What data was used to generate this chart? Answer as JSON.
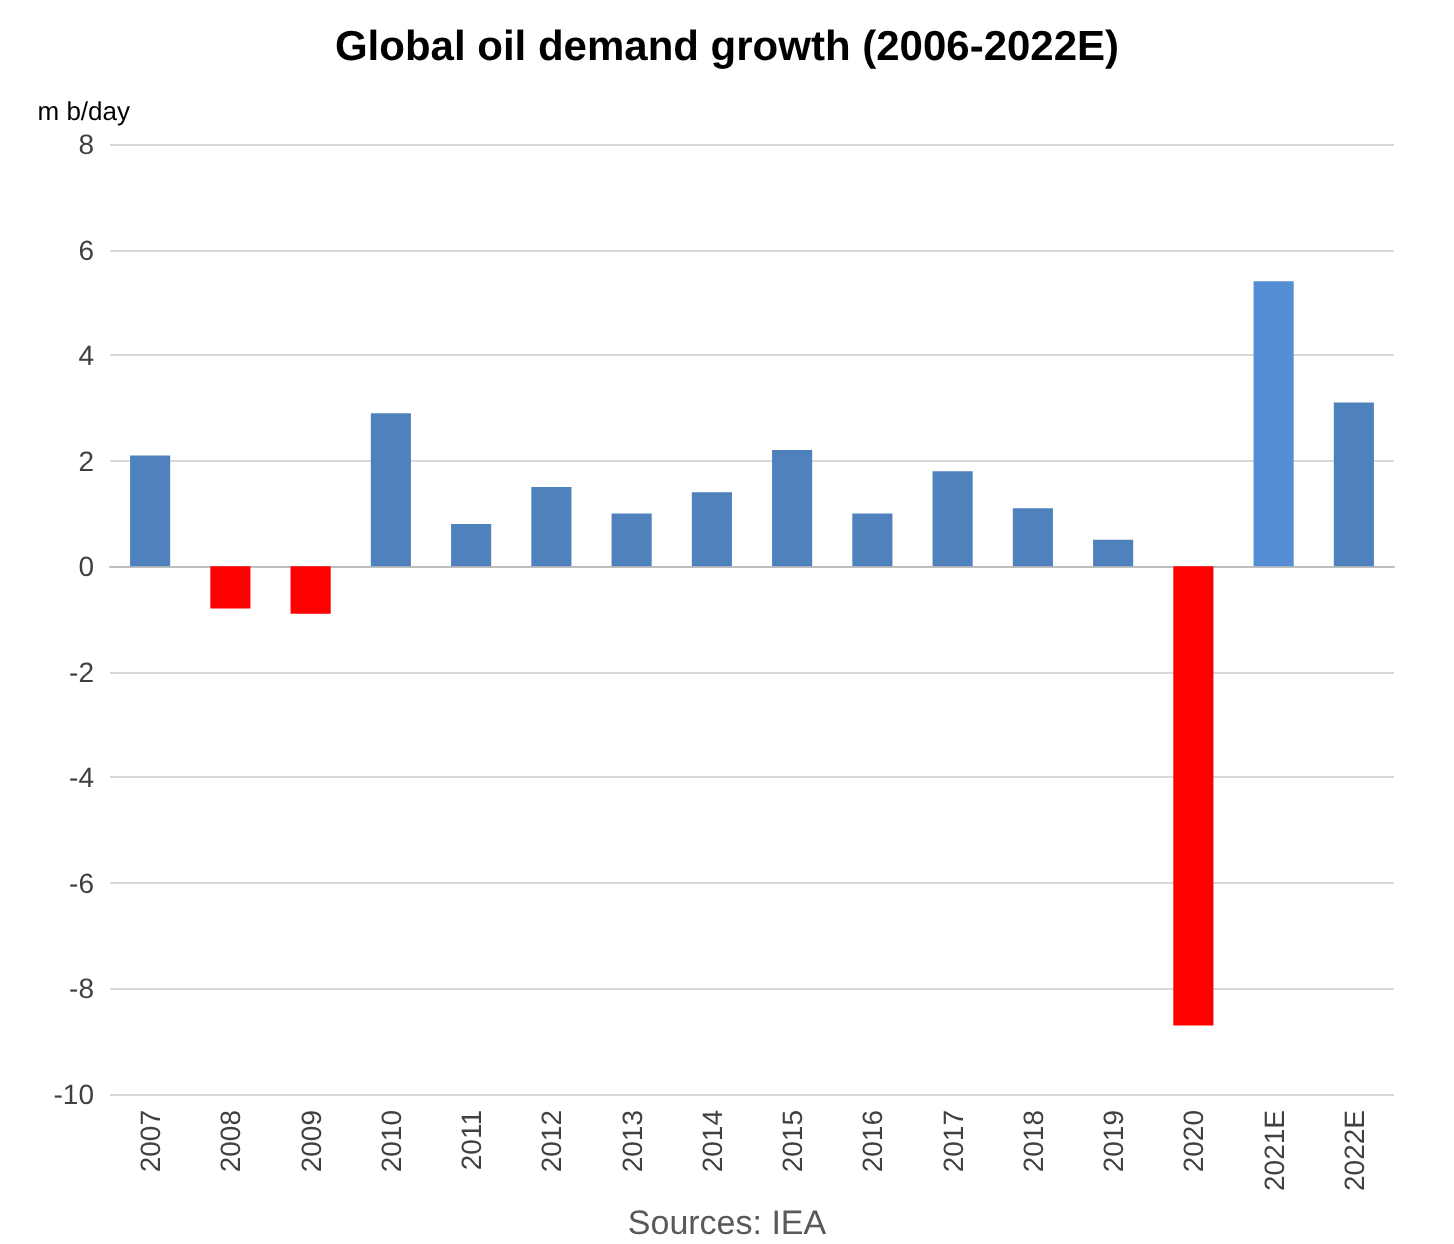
{
  "chart_data": {
    "type": "bar",
    "title": "Global oil demand growth (2006-2022E)",
    "ylabel": "m b/day",
    "categories": [
      "2007",
      "2008",
      "2009",
      "2010",
      "2011",
      "2012",
      "2013",
      "2014",
      "2015",
      "2016",
      "2017",
      "2018",
      "2019",
      "2020",
      "2021E",
      "2022E"
    ],
    "values": [
      2.1,
      -0.8,
      -0.9,
      2.9,
      0.8,
      1.5,
      1.0,
      1.4,
      2.2,
      1.0,
      1.8,
      1.1,
      0.5,
      -8.7,
      5.4,
      3.1
    ],
    "colors": [
      "#4f81bd",
      "#ff0000",
      "#ff0000",
      "#4f81bd",
      "#4f81bd",
      "#4f81bd",
      "#4f81bd",
      "#4f81bd",
      "#4f81bd",
      "#4f81bd",
      "#4f81bd",
      "#4f81bd",
      "#4f81bd",
      "#ff0000",
      "#558ed5",
      "#4f81bd"
    ],
    "ylim": [
      -10,
      8
    ],
    "yticks": [
      -10,
      -8,
      -6,
      -4,
      -2,
      0,
      2,
      4,
      6,
      8
    ],
    "grid": "y",
    "annotations": [
      "Sources: IEA"
    ]
  }
}
